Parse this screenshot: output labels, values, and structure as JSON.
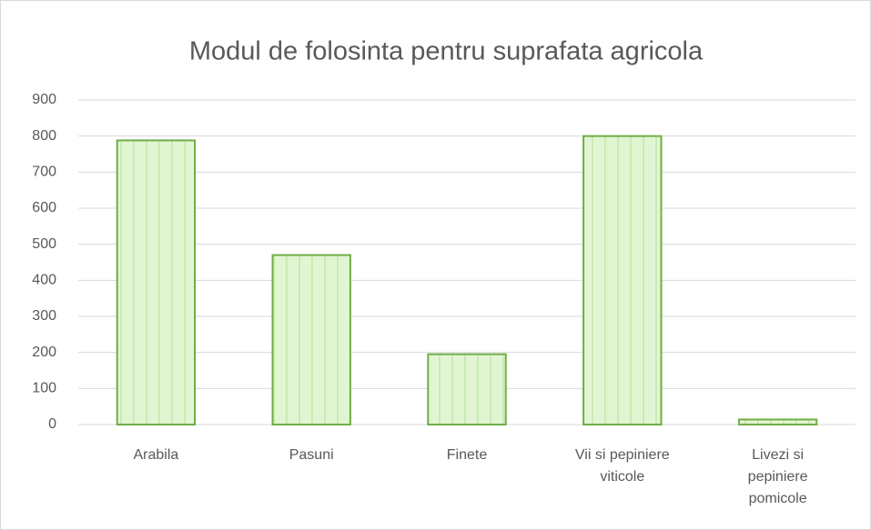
{
  "chart_data": {
    "type": "bar",
    "title": "Modul de folosinta pentru suprafata agricola",
    "categories": [
      "Arabila",
      "Pasuni",
      "Finete",
      "Vii si pepiniere viticole",
      "Livezi si pepiniere pomicole"
    ],
    "values": [
      788,
      470,
      195,
      800,
      14
    ],
    "color": "#70ad47",
    "ylim": [
      0,
      900
    ],
    "yticks": [
      0,
      100,
      200,
      300,
      400,
      500,
      600,
      700,
      800,
      900
    ],
    "grid": true
  }
}
